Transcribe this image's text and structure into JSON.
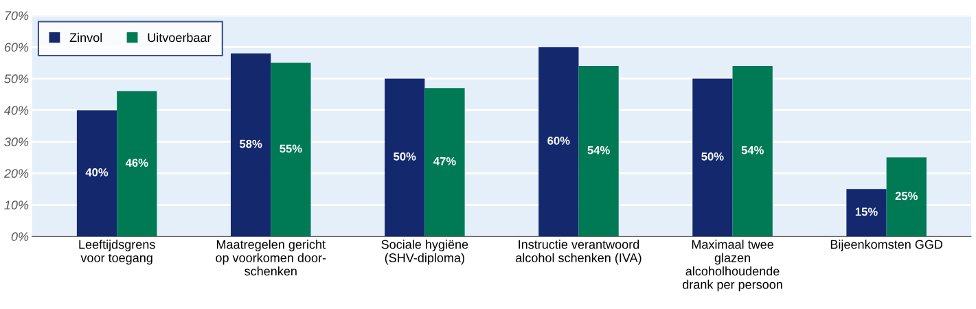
{
  "chart_data": {
    "type": "bar",
    "categories": [
      "Leeftijdsgrens\nvoor toegang",
      "Maatregelen gericht\nop voorkomen door-\nschenken",
      "Sociale hygiëne\n(SHV-diploma)",
      "Instructie verantwoord\nalcohol schenken (IVA)",
      "Maximaal twee\nglazen\nalcoholhoudende\ndrank per persoon",
      "Bijeenkomsten GGD"
    ],
    "series": [
      {
        "name": "Zinvol",
        "color": "#14286e",
        "values": [
          40,
          58,
          50,
          60,
          50,
          15
        ],
        "value_labels": [
          "40%",
          "58%",
          "50%",
          "60%",
          "50%",
          "15%"
        ]
      },
      {
        "name": "Uitvoerbaar",
        "color": "#007a55",
        "values": [
          46,
          55,
          47,
          54,
          54,
          25
        ],
        "value_labels": [
          "46%",
          "55%",
          "47%",
          "54%",
          "54%",
          "25%"
        ]
      }
    ],
    "ylim": [
      0,
      70
    ],
    "yticks": [
      {
        "value": 0,
        "label": "0%"
      },
      {
        "value": 10,
        "label": "10%"
      },
      {
        "value": 20,
        "label": "20%"
      },
      {
        "value": 30,
        "label": "30%"
      },
      {
        "value": 40,
        "label": "40%"
      },
      {
        "value": 50,
        "label": "50%"
      },
      {
        "value": 60,
        "label": "60%"
      },
      {
        "value": 70,
        "label": "70%"
      }
    ],
    "grid": "y",
    "legend": "top left"
  }
}
